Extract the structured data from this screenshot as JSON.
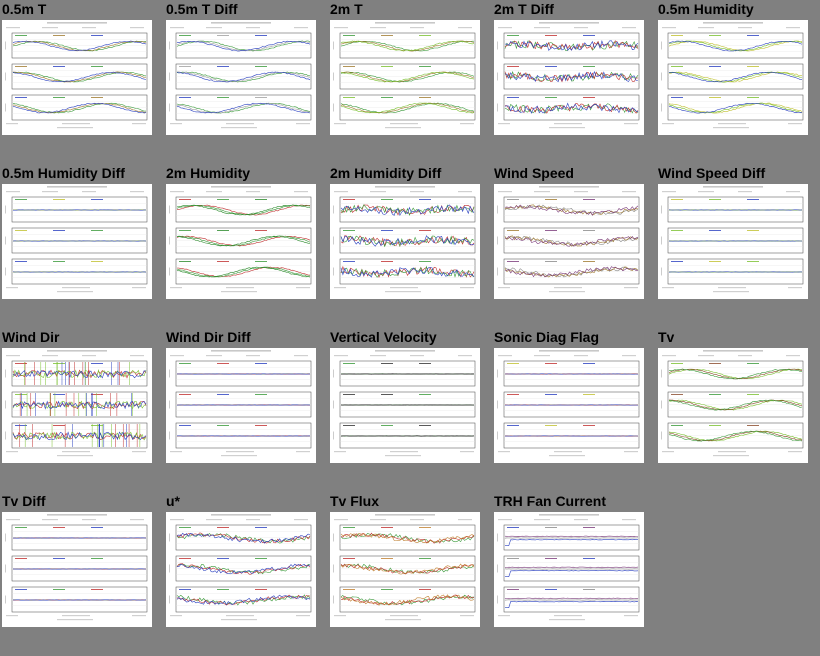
{
  "panels": [
    {
      "title": "0.5m T",
      "profile": "smooth",
      "colors": [
        "#3a9a3a",
        "#a07a30",
        "#2a40c0"
      ]
    },
    {
      "title": "0.5m T Diff",
      "profile": "smooth",
      "colors": [
        "#3a9a3a",
        "#a0a0a0",
        "#2a40c0"
      ]
    },
    {
      "title": "2m T",
      "profile": "smooth",
      "colors": [
        "#3a9a3a",
        "#a07a30",
        "#7ac030"
      ]
    },
    {
      "title": "2m T Diff",
      "profile": "noisy",
      "colors": [
        "#3a9a3a",
        "#c03030",
        "#2a40c0"
      ]
    },
    {
      "title": "0.5m Humidity",
      "profile": "smooth",
      "colors": [
        "#c0c030",
        "#7ac030",
        "#2a40c0"
      ]
    },
    {
      "title": "0.5m Humidity Diff",
      "profile": "sparse",
      "colors": [
        "#3a9a3a",
        "#c0c030",
        "#2a40c0"
      ]
    },
    {
      "title": "2m Humidity",
      "profile": "smooth",
      "colors": [
        "#c03030",
        "#3a9a3a",
        "#2a8a2a"
      ]
    },
    {
      "title": "2m Humidity Diff",
      "profile": "noisy",
      "colors": [
        "#c03030",
        "#3a9a3a",
        "#2a40c0"
      ]
    },
    {
      "title": "Wind Speed",
      "profile": "medium",
      "colors": [
        "#8a8a8a",
        "#a07a30",
        "#7a3a7a"
      ]
    },
    {
      "title": "Wind Speed Diff",
      "profile": "sparse",
      "colors": [
        "#c0c030",
        "#7ac030",
        "#2a40c0"
      ]
    },
    {
      "title": "Wind Dir",
      "profile": "winddir",
      "colors": [
        "#c03030",
        "#7ac030",
        "#2a40c0"
      ]
    },
    {
      "title": "Wind Dir Diff",
      "profile": "sparse",
      "colors": [
        "#3a9a3a",
        "#c03030",
        "#2a40c0"
      ]
    },
    {
      "title": "Vertical Velocity",
      "profile": "flat",
      "colors": [
        "#3a9a3a",
        "#303030",
        "#303030"
      ]
    },
    {
      "title": "Sonic Diag Flag",
      "profile": "sparse",
      "colors": [
        "#c0c030",
        "#c03030",
        "#2a40c0"
      ]
    },
    {
      "title": "Tv",
      "profile": "smooth",
      "colors": [
        "#7ac030",
        "#8a4a2a",
        "#3a9a3a"
      ]
    },
    {
      "title": "Tv Diff",
      "profile": "sparse",
      "colors": [
        "#3a9a3a",
        "#c03030",
        "#2a40c0"
      ]
    },
    {
      "title": "u*",
      "profile": "medium",
      "colors": [
        "#3a9a3a",
        "#c03030",
        "#2a40c0"
      ]
    },
    {
      "title": "Tv Flux",
      "profile": "medium",
      "colors": [
        "#3a9a3a",
        "#c03030",
        "#c08030"
      ]
    },
    {
      "title": "TRH Fan Current",
      "profile": "fan",
      "colors": [
        "#2a40c0",
        "#8a8a8a",
        "#7a3a7a"
      ]
    }
  ]
}
